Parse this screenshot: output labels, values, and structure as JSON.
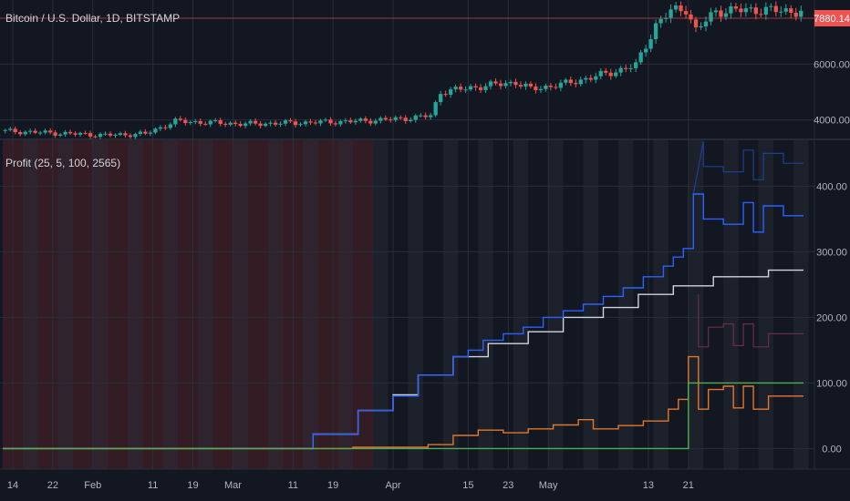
{
  "header": {
    "symbol_title": "Bitcoin / U.S. Dollar, 1D, BITSTAMP",
    "indicator_title": "Profit (25, 5, 100, 2565)",
    "last_price": "7880.14"
  },
  "colors": {
    "background": "#131722",
    "grid": "#2a2e39",
    "up": "#26a69a",
    "down": "#ef5350",
    "price_badge": "#ef5350",
    "series_blue": "#2962ff",
    "series_blue_faint": "#1e3f8f",
    "series_white": "#d1d4dc",
    "series_purple": "#8e6bd6",
    "series_pink_faint": "#6b2d4a",
    "series_orange": "#e2762a",
    "series_green": "#4caf50",
    "band_red": "#3a1d24",
    "band_stripe": "#2a2e39"
  },
  "x_axis": {
    "labels": [
      "14",
      "22",
      "Feb",
      "11",
      "19",
      "Mar",
      "11",
      "19",
      "Apr",
      "15",
      "23",
      "May",
      "13",
      "21"
    ]
  },
  "chart_data": [
    {
      "type": "candlestick",
      "title": "Bitcoin / U.S. Dollar, 1D, BITSTAMP",
      "ylim": [
        3300,
        8300
      ],
      "y_ticks": [
        "4000.00",
        "6000.00"
      ],
      "last_value": 7880.14,
      "date_range": [
        "2019-01-12",
        "2019-05-23"
      ]
    },
    {
      "type": "line",
      "title": "Profit (25, 5, 100, 2565)",
      "ylim": [
        -30,
        470
      ],
      "y_ticks": [
        "0.00",
        "100.00",
        "200.00",
        "300.00",
        "400.00"
      ],
      "series": [
        {
          "key": "white",
          "values": [
            [
              0,
              0
            ],
            [
              62,
              0
            ],
            [
              62,
              22
            ],
            [
              71,
              22
            ],
            [
              71,
              58
            ],
            [
              78,
              58
            ],
            [
              78,
              82
            ],
            [
              83,
              82
            ],
            [
              83,
              112
            ],
            [
              90,
              112
            ],
            [
              90,
              140
            ],
            [
              97,
              140
            ],
            [
              97,
              160
            ],
            [
              105,
              160
            ],
            [
              105,
              178
            ],
            [
              112,
              178
            ],
            [
              112,
              200
            ],
            [
              120,
              200
            ],
            [
              120,
              215
            ],
            [
              127,
              215
            ],
            [
              127,
              235
            ],
            [
              134,
              235
            ],
            [
              134,
              248
            ],
            [
              142,
              248
            ],
            [
              142,
              262
            ],
            [
              153,
              262
            ],
            [
              153,
              272
            ],
            [
              160,
              272
            ]
          ]
        },
        {
          "key": "blue",
          "values": [
            [
              0,
              0
            ],
            [
              62,
              0
            ],
            [
              62,
              22
            ],
            [
              71,
              22
            ],
            [
              71,
              58
            ],
            [
              78,
              58
            ],
            [
              78,
              80
            ],
            [
              83,
              80
            ],
            [
              83,
              112
            ],
            [
              90,
              112
            ],
            [
              90,
              140
            ],
            [
              93,
              140
            ],
            [
              93,
              150
            ],
            [
              96,
              150
            ],
            [
              96,
              165
            ],
            [
              100,
              165
            ],
            [
              100,
              175
            ],
            [
              104,
              175
            ],
            [
              104,
              185
            ],
            [
              108,
              185
            ],
            [
              108,
              200
            ],
            [
              112,
              200
            ],
            [
              112,
              210
            ],
            [
              116,
              210
            ],
            [
              116,
              220
            ],
            [
              120,
              220
            ],
            [
              120,
              232
            ],
            [
              124,
              232
            ],
            [
              124,
              245
            ],
            [
              128,
              245
            ],
            [
              128,
              262
            ],
            [
              132,
              262
            ],
            [
              132,
              278
            ],
            [
              134,
              278
            ],
            [
              134,
              292
            ],
            [
              136,
              292
            ],
            [
              136,
              305
            ],
            [
              138,
              305
            ],
            [
              138,
              388
            ],
            [
              140,
              388
            ],
            [
              140,
              350
            ],
            [
              144,
              350
            ],
            [
              144,
              342
            ],
            [
              148,
              342
            ],
            [
              148,
              375
            ],
            [
              150,
              375
            ],
            [
              150,
              330
            ],
            [
              152,
              330
            ],
            [
              152,
              370
            ],
            [
              156,
              370
            ],
            [
              156,
              355
            ],
            [
              160,
              355
            ]
          ]
        },
        {
          "key": "orange",
          "values": [
            [
              0,
              0
            ],
            [
              70,
              0
            ],
            [
              70,
              2
            ],
            [
              85,
              2
            ],
            [
              85,
              6
            ],
            [
              90,
              6
            ],
            [
              90,
              20
            ],
            [
              95,
              20
            ],
            [
              95,
              28
            ],
            [
              100,
              28
            ],
            [
              100,
              24
            ],
            [
              105,
              24
            ],
            [
              105,
              30
            ],
            [
              110,
              30
            ],
            [
              110,
              36
            ],
            [
              115,
              36
            ],
            [
              115,
              44
            ],
            [
              118,
              44
            ],
            [
              118,
              30
            ],
            [
              123,
              30
            ],
            [
              123,
              35
            ],
            [
              128,
              35
            ],
            [
              128,
              42
            ],
            [
              133,
              42
            ],
            [
              133,
              60
            ],
            [
              135,
              60
            ],
            [
              135,
              75
            ],
            [
              137,
              75
            ],
            [
              137,
              140
            ],
            [
              139,
              140
            ],
            [
              139,
              60
            ],
            [
              141,
              60
            ],
            [
              141,
              90
            ],
            [
              144,
              90
            ],
            [
              144,
              95
            ],
            [
              146,
              95
            ],
            [
              146,
              62
            ],
            [
              148,
              62
            ],
            [
              148,
              95
            ],
            [
              150,
              95
            ],
            [
              150,
              60
            ],
            [
              153,
              60
            ],
            [
              153,
              80
            ],
            [
              160,
              80
            ]
          ]
        },
        {
          "key": "green",
          "values": [
            [
              0,
              0
            ],
            [
              137,
              0
            ],
            [
              137,
              100
            ],
            [
              160,
              100
            ]
          ]
        }
      ]
    }
  ]
}
